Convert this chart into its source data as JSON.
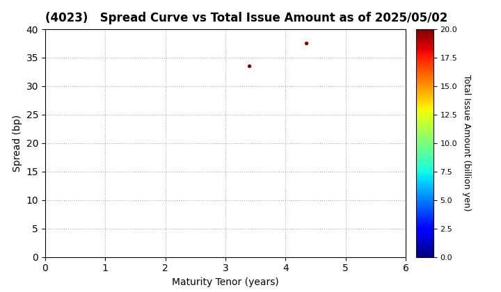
{
  "title": "(4023)   Spread Curve vs Total Issue Amount as of 2025/05/02",
  "xlabel": "Maturity Tenor (years)",
  "ylabel": "Spread (bp)",
  "colorbar_label": "Total Issue Amount (billion yen)",
  "xlim": [
    0,
    6
  ],
  "ylim": [
    0,
    40
  ],
  "xticks": [
    0,
    1,
    2,
    3,
    4,
    5,
    6
  ],
  "yticks": [
    0,
    5,
    10,
    15,
    20,
    25,
    30,
    35,
    40
  ],
  "colorbar_min": 0.0,
  "colorbar_max": 20.0,
  "colorbar_ticks": [
    0.0,
    2.5,
    5.0,
    7.5,
    10.0,
    12.5,
    15.0,
    17.5,
    20.0
  ],
  "scatter_x": [
    3.4,
    4.35
  ],
  "scatter_y": [
    33.5,
    37.5
  ],
  "scatter_values": [
    20.0,
    20.0
  ],
  "marker_size": 8,
  "grid_color": "#aaaaaa",
  "grid_style": "dotted",
  "background_color": "#ffffff",
  "colormap": "jet",
  "title_fontsize": 12,
  "axis_fontsize": 10,
  "colorbar_fontsize": 9
}
